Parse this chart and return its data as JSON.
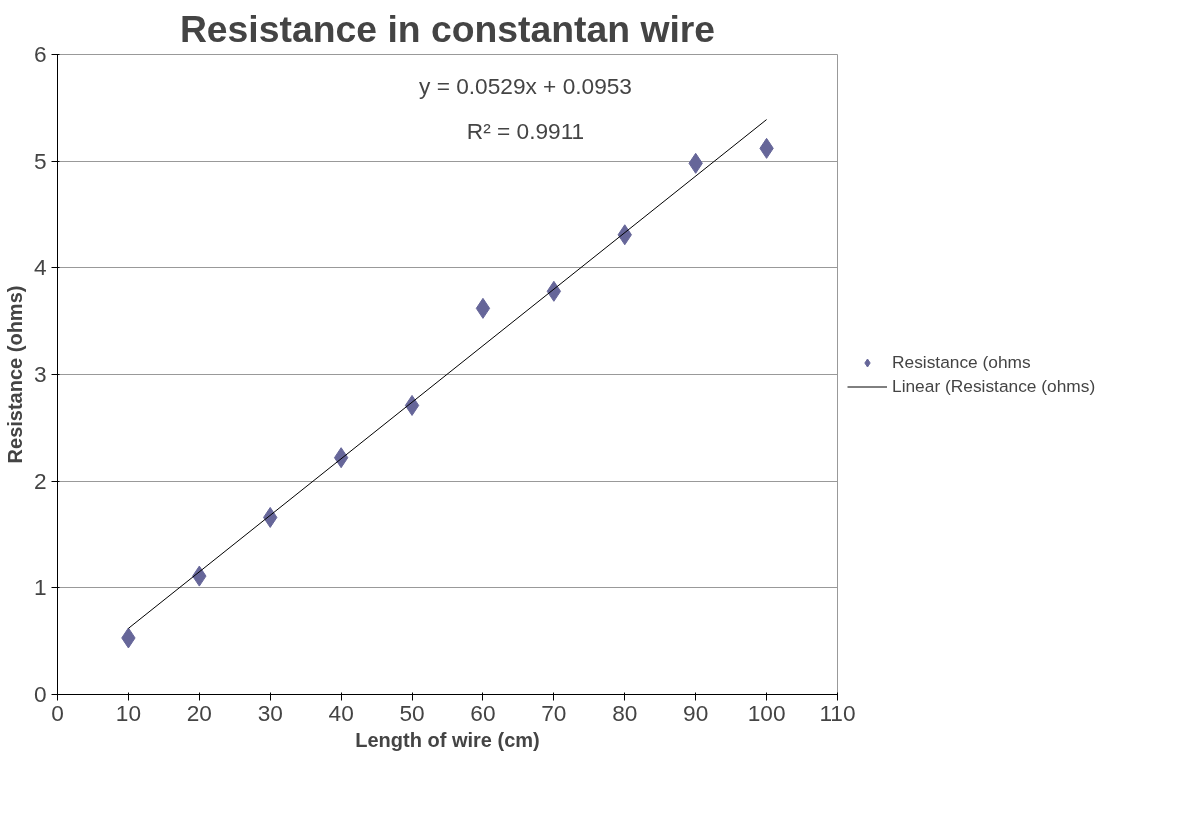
{
  "chart_data": {
    "type": "scatter",
    "title": "Resistance in constantan wire",
    "xlabel": "Length of wire (cm)",
    "ylabel": "Resistance (ohms)",
    "x": [
      10,
      20,
      30,
      40,
      50,
      60,
      70,
      80,
      90,
      100
    ],
    "series": [
      {
        "name": "Resistance (ohms",
        "color": "#666699",
        "marker": "diamond",
        "values": [
          0.53,
          1.11,
          1.66,
          2.22,
          2.71,
          3.62,
          3.78,
          4.31,
          4.98,
          5.12
        ]
      },
      {
        "name": "Linear (Resistance (ohms)",
        "type": "line",
        "color": "#000000",
        "x": [
          10,
          100
        ],
        "values": [
          0.62,
          5.39
        ]
      }
    ],
    "annotations": [
      "y = 0.0529x + 0.0953",
      "R² = 0.9911"
    ],
    "xlim": [
      0,
      110
    ],
    "xticks": [
      0,
      10,
      20,
      30,
      40,
      50,
      60,
      70,
      80,
      90,
      100,
      110
    ],
    "ylim": [
      0,
      6
    ],
    "yticks": [
      0,
      1,
      2,
      3,
      4,
      5,
      6
    ],
    "grid": "y",
    "legend": "right"
  }
}
